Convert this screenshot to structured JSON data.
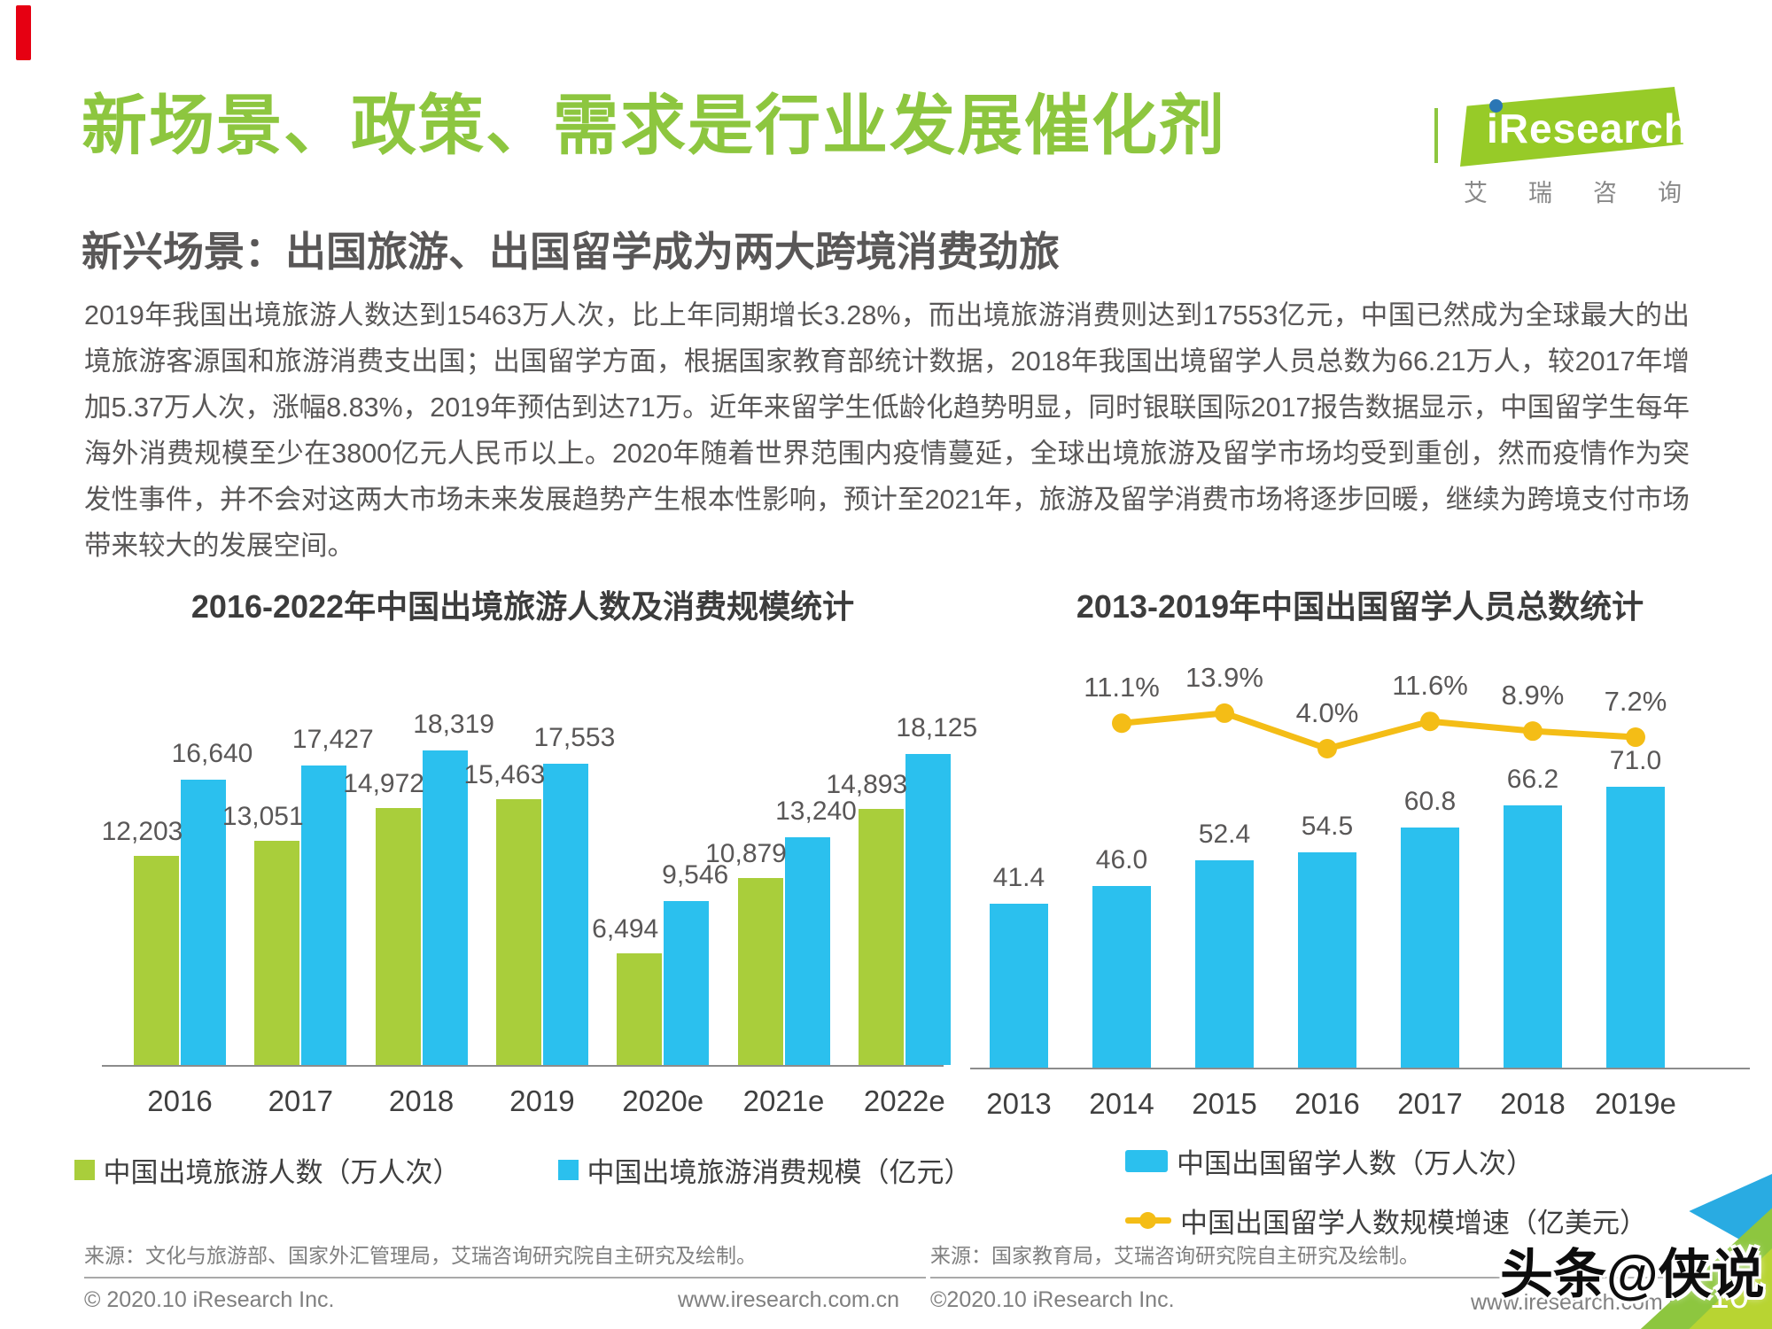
{
  "page": {
    "title": "新场景、政策、需求是行业发展催化剂",
    "subtitle": "新兴场景：出国旅游、出国留学成为两大跨境消费劲旅",
    "paragraph": "2019年我国出境旅游人数达到15463万人次，比上年同期增长3.28%，而出境旅游消费则达到17553亿元，中国已然成为全球最大的出境旅游客源国和旅游消费支出国；出国留学方面，根据国家教育部统计数据，2018年我国出境留学人员总数为66.21万人，较2017年增加5.37万人次，涨幅8.83%，2019年预估到达71万。近年来留学生低龄化趋势明显，同时银联国际2017报告数据显示，中国留学生每年海外消费规模至少在3800亿元人民币以上。2020年随着世界范围内疫情蔓延，全球出境旅游及留学市场均受到重创，然而疫情作为突发性事件，并不会对这两大市场未来发展趋势产生根本性影响，预计至2021年，旅游及留学消费市场将逐步回暖，继续为跨境支付市场带来较大的发展空间。",
    "page_number": "10",
    "watermark": "头条@侠说"
  },
  "logo": {
    "brand": "iResearch",
    "brand_cn": "艾瑞咨询",
    "brand_cn_chars": [
      "艾",
      "瑞",
      "咨",
      "询"
    ]
  },
  "colors": {
    "accent_green": "#8dc63f",
    "bar_green": "#a9ce3b",
    "bar_blue": "#2bc0ee",
    "line_yellow": "#f4bd16",
    "text_dark": "#595757",
    "red_mark": "#e60012",
    "logo_blue": "#2a76b5"
  },
  "chart_data": [
    {
      "type": "bar",
      "title": "2016-2022年中国出境旅游人数及消费规模统计",
      "categories": [
        "2016",
        "2017",
        "2018",
        "2019",
        "2020e",
        "2021e",
        "2022e"
      ],
      "series": [
        {
          "name": "中国出境旅游人数（万人次）",
          "color": "#a9ce3b",
          "values": [
            12203,
            13051,
            14972,
            15463,
            6494,
            10879,
            14893
          ],
          "labels": [
            "12,203",
            "13,051",
            "14,972",
            "15,463",
            "6,494",
            "10,879",
            "14,893"
          ]
        },
        {
          "name": "中国出境旅游消费规模（亿元）",
          "color": "#2bc0ee",
          "values": [
            16640,
            17427,
            18319,
            17553,
            9546,
            13240,
            18125
          ],
          "labels": [
            "16,640",
            "17,427",
            "18,319",
            "17,553",
            "9,546",
            "13,240",
            "18,125"
          ]
        }
      ],
      "ylim": [
        0,
        18319
      ],
      "grid": false,
      "legend_position": "bottom",
      "source": "来源：文化与旅游部、国家外汇管理局，艾瑞咨询研究院自主研究及绘制。",
      "copyright": "© 2020.10 iResearch Inc.",
      "website": "www.iresearch.com.cn"
    },
    {
      "type": "bar",
      "title": "2013-2019年中国出国留学人员总数统计",
      "categories": [
        "2013",
        "2014",
        "2015",
        "2016",
        "2017",
        "2018",
        "2019e"
      ],
      "series": [
        {
          "kind": "bar",
          "name": "中国出国留学人数（万人次）",
          "color": "#2bc0ee",
          "values": [
            41.4,
            46.0,
            52.4,
            54.5,
            60.8,
            66.2,
            71.0
          ],
          "labels": [
            "41.4",
            "46.0",
            "52.4",
            "54.5",
            "60.8",
            "66.2",
            "71.0"
          ]
        },
        {
          "kind": "line",
          "name": "中国出国留学人数规模增速（亿美元）",
          "color": "#f4bd16",
          "values": [
            null,
            11.1,
            13.9,
            4.0,
            11.6,
            8.9,
            7.2
          ],
          "labels": [
            "",
            "11.1%",
            "13.9%",
            "4.0%",
            "11.6%",
            "8.9%",
            "7.2%"
          ]
        }
      ],
      "ylim": [
        0,
        71
      ],
      "grid": false,
      "legend_position": "bottom",
      "source": "来源：国家教育局，艾瑞咨询研究院自主研究及绘制。",
      "copyright": "©2020.10 iResearch Inc.",
      "website": "www.iresearch.com.cn"
    }
  ]
}
